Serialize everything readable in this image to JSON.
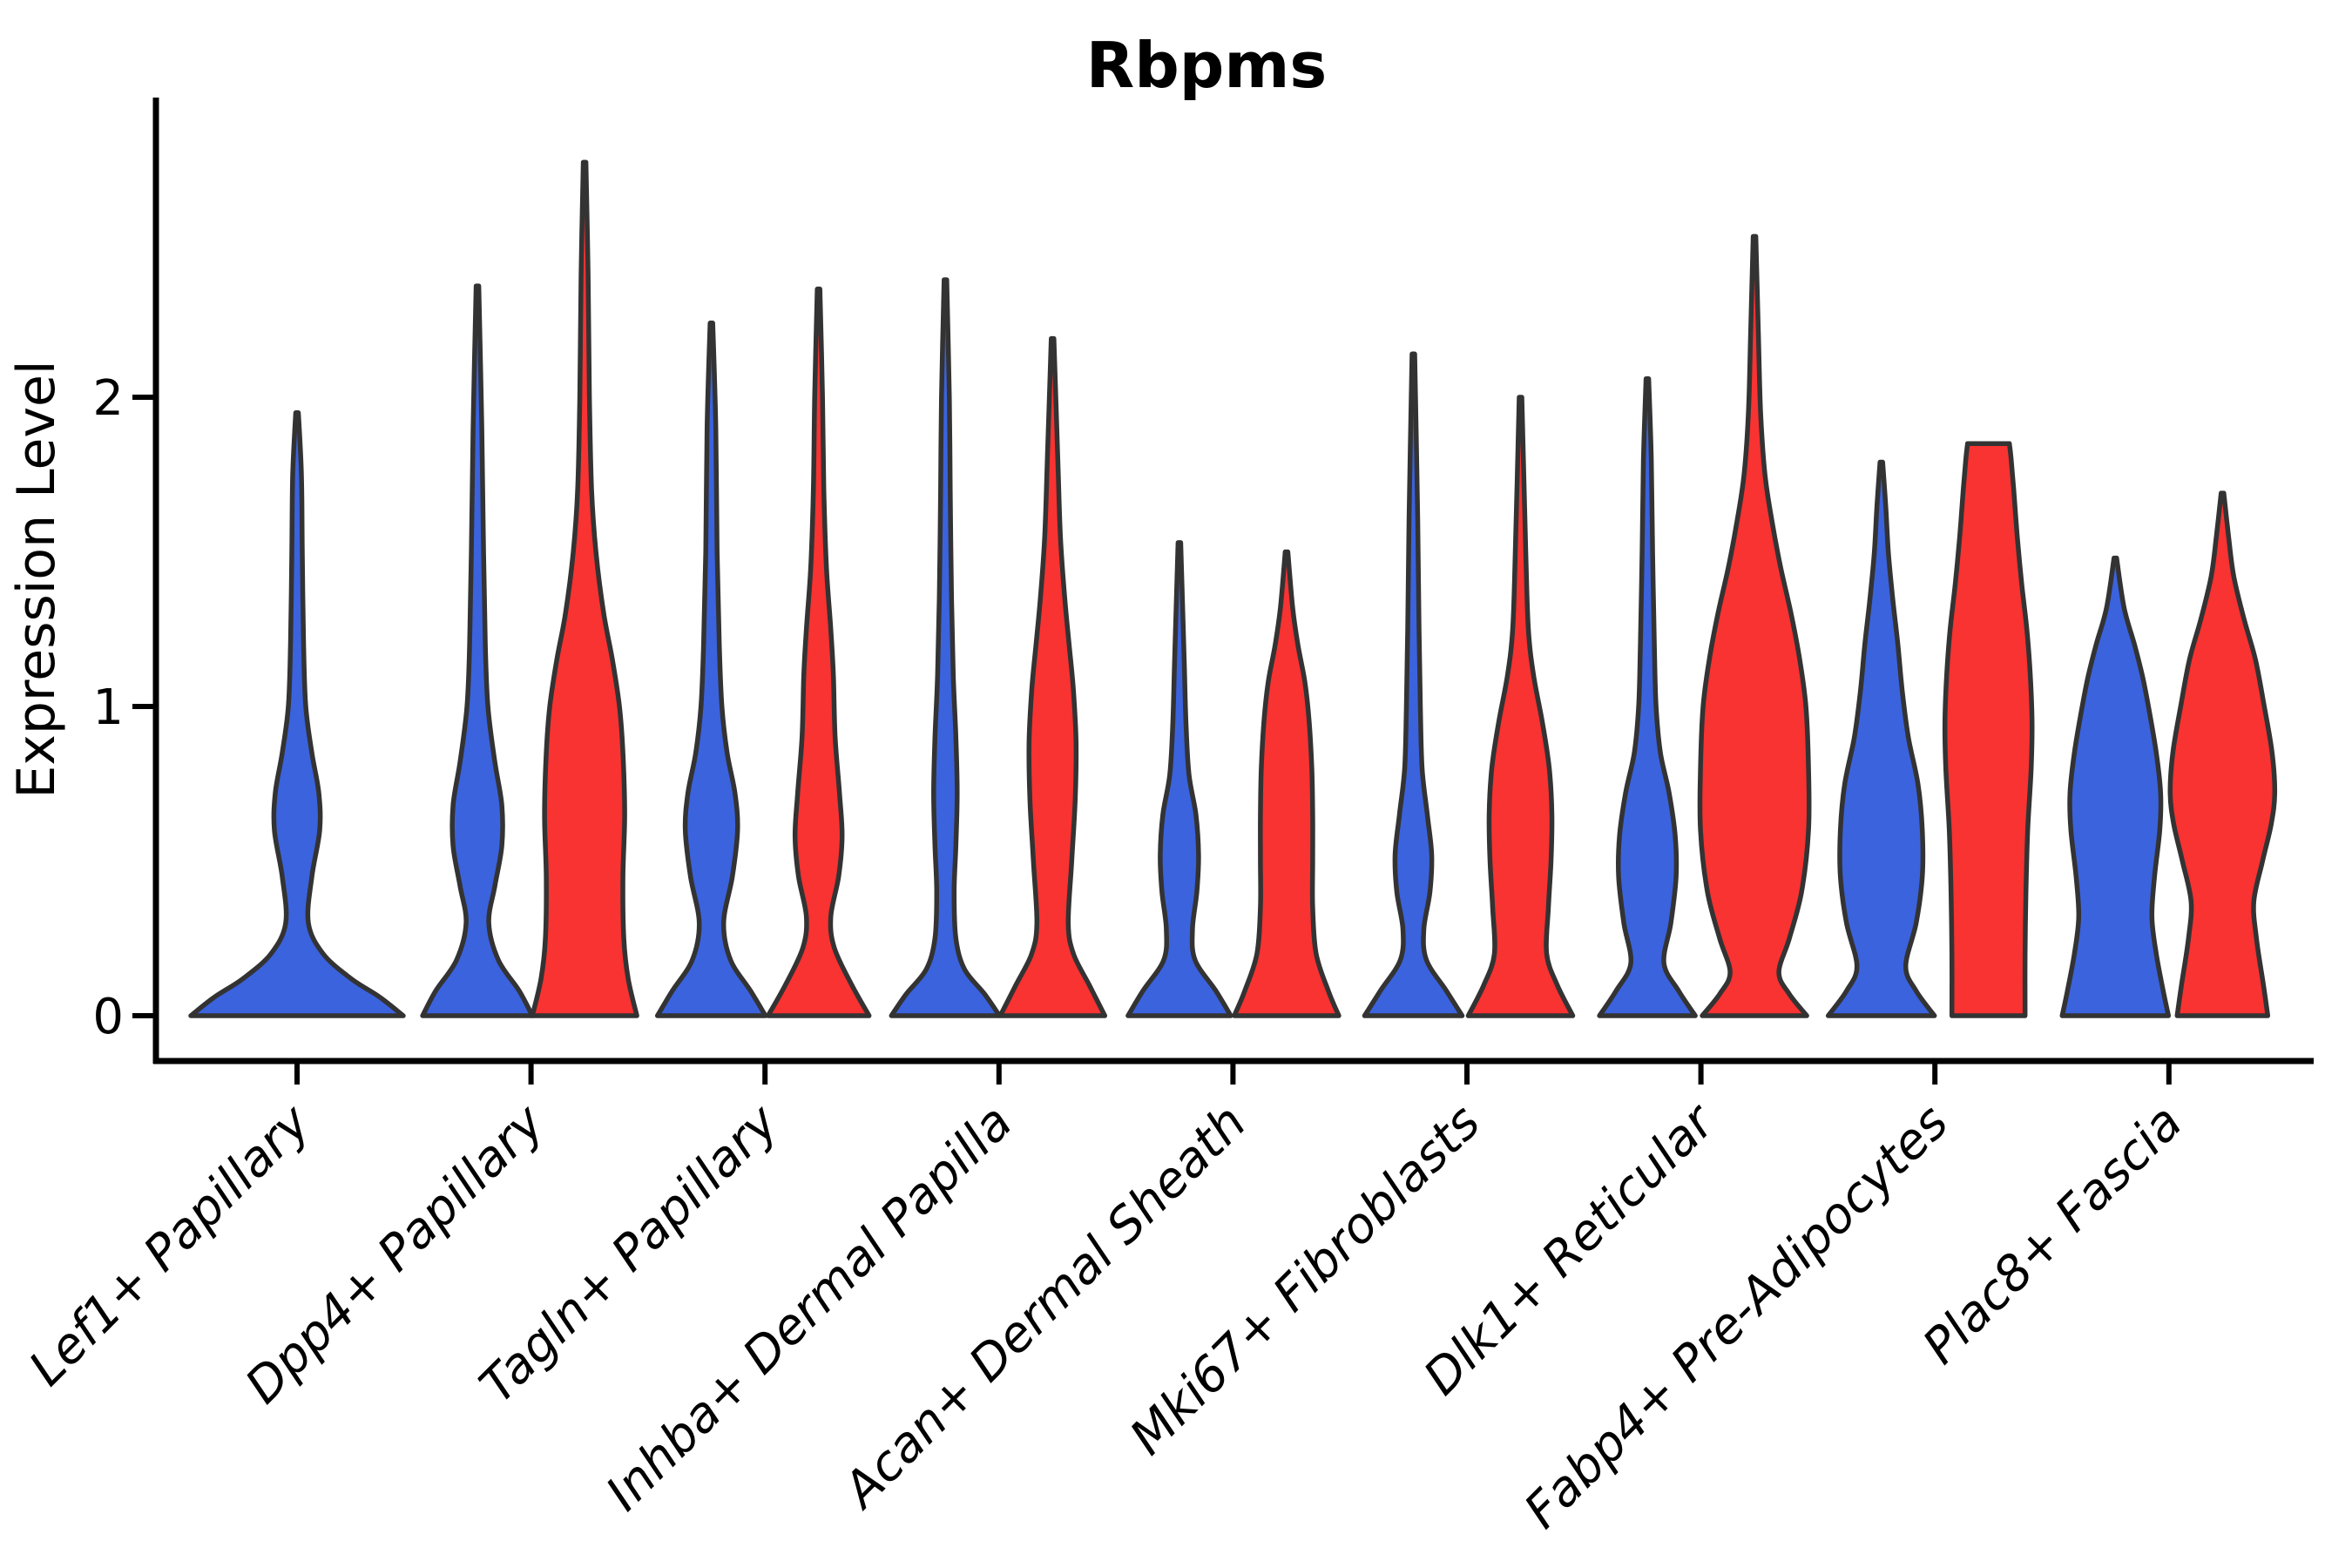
{
  "chart_data": {
    "type": "violin",
    "title": "Rbpms",
    "ylabel": "Expression Level",
    "xlabel": "",
    "y_ticks": [
      0,
      1,
      2
    ],
    "ylim": [
      -0.12,
      2.96
    ],
    "grid": false,
    "legend": "none",
    "colors": {
      "blue": "#3B63DE",
      "red": "#F93232",
      "outline": "#333333",
      "axis": "#000000"
    },
    "categories": [
      "Lef1+ Papillary",
      "Dpp4+ Papillary",
      "Tagln+ Papillary",
      "Inhba+ Dermal Papilla",
      "Acan+ Dermal Sheath",
      "Mki67+ Fibroblasts",
      "Dlk1+ Reticular",
      "Fabp4+ Pre-Adipocytes",
      "Plac8+ Fascia"
    ],
    "violins": [
      {
        "category": 0,
        "group": "blue",
        "side": "center",
        "max": 1.95,
        "flat_top": false,
        "profile": [
          [
            0,
            122
          ],
          [
            0.06,
            95
          ],
          [
            0.12,
            62
          ],
          [
            0.2,
            30
          ],
          [
            0.3,
            13
          ],
          [
            0.45,
            17
          ],
          [
            0.6,
            26
          ],
          [
            0.72,
            25
          ],
          [
            0.85,
            17
          ],
          [
            1.0,
            10
          ],
          [
            1.2,
            7.5
          ],
          [
            1.5,
            6
          ],
          [
            1.75,
            5
          ],
          [
            1.95,
            1.5
          ]
        ]
      },
      {
        "category": 1,
        "group": "blue",
        "side": "left",
        "max": 2.36,
        "flat_top": false,
        "profile": [
          [
            0,
            63
          ],
          [
            0.08,
            48
          ],
          [
            0.18,
            24
          ],
          [
            0.3,
            13
          ],
          [
            0.42,
            20
          ],
          [
            0.55,
            28
          ],
          [
            0.68,
            28
          ],
          [
            0.82,
            20
          ],
          [
            1.0,
            12
          ],
          [
            1.2,
            9
          ],
          [
            1.5,
            7
          ],
          [
            1.9,
            5
          ],
          [
            2.36,
            1.5
          ]
        ]
      },
      {
        "category": 1,
        "group": "red",
        "side": "right",
        "max": 2.76,
        "flat_top": false,
        "profile": [
          [
            0,
            60
          ],
          [
            0.12,
            50
          ],
          [
            0.25,
            45
          ],
          [
            0.45,
            44
          ],
          [
            0.65,
            46
          ],
          [
            0.85,
            44
          ],
          [
            1.0,
            40
          ],
          [
            1.15,
            32
          ],
          [
            1.3,
            22
          ],
          [
            1.5,
            13
          ],
          [
            1.7,
            8
          ],
          [
            2.0,
            5.5
          ],
          [
            2.4,
            4
          ],
          [
            2.76,
            1.5
          ]
        ]
      },
      {
        "category": 2,
        "group": "blue",
        "side": "left",
        "max": 2.24,
        "flat_top": false,
        "profile": [
          [
            0,
            62
          ],
          [
            0.08,
            45
          ],
          [
            0.18,
            22
          ],
          [
            0.3,
            14
          ],
          [
            0.45,
            24
          ],
          [
            0.6,
            30
          ],
          [
            0.72,
            27
          ],
          [
            0.85,
            18
          ],
          [
            1.0,
            12
          ],
          [
            1.2,
            9
          ],
          [
            1.5,
            6.5
          ],
          [
            1.9,
            5
          ],
          [
            2.24,
            1.5
          ]
        ]
      },
      {
        "category": 2,
        "group": "red",
        "side": "right",
        "max": 2.35,
        "flat_top": false,
        "profile": [
          [
            0,
            58
          ],
          [
            0.1,
            38
          ],
          [
            0.22,
            18
          ],
          [
            0.32,
            14
          ],
          [
            0.45,
            23
          ],
          [
            0.58,
            27
          ],
          [
            0.72,
            24
          ],
          [
            0.9,
            19
          ],
          [
            1.1,
            17
          ],
          [
            1.25,
            14
          ],
          [
            1.45,
            9
          ],
          [
            1.7,
            6
          ],
          [
            2.0,
            4.5
          ],
          [
            2.35,
            1.5
          ]
        ]
      },
      {
        "category": 3,
        "group": "blue",
        "side": "left",
        "max": 2.38,
        "flat_top": false,
        "profile": [
          [
            0,
            62
          ],
          [
            0.07,
            45
          ],
          [
            0.15,
            22
          ],
          [
            0.25,
            12
          ],
          [
            0.4,
            10
          ],
          [
            0.55,
            12
          ],
          [
            0.72,
            13.5
          ],
          [
            0.9,
            12
          ],
          [
            1.1,
            9
          ],
          [
            1.35,
            7
          ],
          [
            1.7,
            5.5
          ],
          [
            2.0,
            4.5
          ],
          [
            2.38,
            1.5
          ]
        ]
      },
      {
        "category": 3,
        "group": "red",
        "side": "right",
        "max": 2.19,
        "flat_top": false,
        "profile": [
          [
            0,
            60
          ],
          [
            0.1,
            42
          ],
          [
            0.2,
            24
          ],
          [
            0.3,
            18
          ],
          [
            0.5,
            22
          ],
          [
            0.7,
            26
          ],
          [
            0.88,
            27
          ],
          [
            1.05,
            24
          ],
          [
            1.2,
            19
          ],
          [
            1.35,
            14
          ],
          [
            1.55,
            9
          ],
          [
            1.8,
            6
          ],
          [
            2.19,
            1.5
          ]
        ]
      },
      {
        "category": 4,
        "group": "blue",
        "side": "left",
        "max": 1.53,
        "flat_top": false,
        "profile": [
          [
            0,
            59
          ],
          [
            0.08,
            42
          ],
          [
            0.18,
            18
          ],
          [
            0.28,
            15
          ],
          [
            0.4,
            20
          ],
          [
            0.52,
            22
          ],
          [
            0.65,
            19
          ],
          [
            0.78,
            11
          ],
          [
            0.95,
            7.5
          ],
          [
            1.15,
            5.5
          ],
          [
            1.53,
            1.5
          ]
        ]
      },
      {
        "category": 4,
        "group": "red",
        "side": "right",
        "max": 1.5,
        "flat_top": false,
        "profile": [
          [
            0,
            60
          ],
          [
            0.08,
            48
          ],
          [
            0.2,
            34
          ],
          [
            0.35,
            30
          ],
          [
            0.5,
            30
          ],
          [
            0.65,
            30
          ],
          [
            0.8,
            29
          ],
          [
            0.95,
            26
          ],
          [
            1.08,
            21
          ],
          [
            1.2,
            13
          ],
          [
            1.32,
            7
          ],
          [
            1.5,
            1.5
          ]
        ]
      },
      {
        "category": 5,
        "group": "blue",
        "side": "left",
        "max": 2.14,
        "flat_top": false,
        "profile": [
          [
            0,
            56
          ],
          [
            0.08,
            38
          ],
          [
            0.18,
            15
          ],
          [
            0.28,
            12
          ],
          [
            0.4,
            19
          ],
          [
            0.52,
            21
          ],
          [
            0.65,
            16
          ],
          [
            0.8,
            10
          ],
          [
            1.0,
            8
          ],
          [
            1.25,
            6.5
          ],
          [
            1.6,
            5
          ],
          [
            2.14,
            1.5
          ]
        ]
      },
      {
        "category": 5,
        "group": "red",
        "side": "right",
        "max": 2.0,
        "flat_top": false,
        "profile": [
          [
            0,
            60
          ],
          [
            0.1,
            42
          ],
          [
            0.2,
            30
          ],
          [
            0.35,
            32
          ],
          [
            0.5,
            35
          ],
          [
            0.65,
            36
          ],
          [
            0.8,
            33
          ],
          [
            0.95,
            25
          ],
          [
            1.1,
            15
          ],
          [
            1.25,
            9
          ],
          [
            1.5,
            6
          ],
          [
            2.0,
            1.5
          ]
        ]
      },
      {
        "category": 6,
        "group": "blue",
        "side": "left",
        "max": 2.06,
        "flat_top": false,
        "profile": [
          [
            0,
            55
          ],
          [
            0.08,
            36
          ],
          [
            0.17,
            19
          ],
          [
            0.3,
            27
          ],
          [
            0.45,
            33
          ],
          [
            0.58,
            32
          ],
          [
            0.72,
            25
          ],
          [
            0.85,
            15
          ],
          [
            1.0,
            10
          ],
          [
            1.2,
            8
          ],
          [
            1.5,
            6
          ],
          [
            1.8,
            4.5
          ],
          [
            2.06,
            1.5
          ]
        ]
      },
      {
        "category": 6,
        "group": "red",
        "side": "right",
        "max": 2.52,
        "flat_top": false,
        "profile": [
          [
            0,
            60
          ],
          [
            0.07,
            40
          ],
          [
            0.14,
            28
          ],
          [
            0.25,
            40
          ],
          [
            0.4,
            54
          ],
          [
            0.6,
            62
          ],
          [
            0.8,
            62
          ],
          [
            1.0,
            59
          ],
          [
            1.15,
            52
          ],
          [
            1.3,
            42
          ],
          [
            1.45,
            30
          ],
          [
            1.6,
            20
          ],
          [
            1.75,
            12
          ],
          [
            1.95,
            7
          ],
          [
            2.2,
            4.5
          ],
          [
            2.52,
            1.5
          ]
        ]
      },
      {
        "category": 7,
        "group": "blue",
        "side": "left",
        "max": 1.79,
        "flat_top": false,
        "profile": [
          [
            0,
            61
          ],
          [
            0.08,
            40
          ],
          [
            0.16,
            28
          ],
          [
            0.3,
            40
          ],
          [
            0.45,
            47
          ],
          [
            0.6,
            47
          ],
          [
            0.75,
            42
          ],
          [
            0.9,
            31
          ],
          [
            1.05,
            24
          ],
          [
            1.2,
            19
          ],
          [
            1.35,
            13
          ],
          [
            1.5,
            8
          ],
          [
            1.65,
            5
          ],
          [
            1.79,
            1.5
          ]
        ]
      },
      {
        "category": 7,
        "group": "red",
        "side": "right",
        "max": 1.85,
        "flat_top": true,
        "profile": [
          [
            0,
            42
          ],
          [
            0.2,
            42
          ],
          [
            0.4,
            43
          ],
          [
            0.6,
            45
          ],
          [
            0.8,
            49
          ],
          [
            0.95,
            50
          ],
          [
            1.1,
            48
          ],
          [
            1.25,
            44
          ],
          [
            1.4,
            38
          ],
          [
            1.55,
            33
          ],
          [
            1.7,
            29
          ],
          [
            1.8,
            26
          ],
          [
            1.85,
            24
          ]
        ]
      },
      {
        "category": 8,
        "group": "blue",
        "side": "left",
        "max": 1.48,
        "flat_top": false,
        "profile": [
          [
            0,
            61
          ],
          [
            0.08,
            55
          ],
          [
            0.2,
            47
          ],
          [
            0.32,
            42
          ],
          [
            0.45,
            45
          ],
          [
            0.6,
            51
          ],
          [
            0.72,
            52
          ],
          [
            0.85,
            47
          ],
          [
            1.0,
            38
          ],
          [
            1.1,
            31
          ],
          [
            1.2,
            22
          ],
          [
            1.32,
            10
          ],
          [
            1.48,
            1.5
          ]
        ]
      },
      {
        "category": 8,
        "group": "red",
        "side": "right",
        "max": 1.69,
        "flat_top": false,
        "profile": [
          [
            0,
            52
          ],
          [
            0.1,
            47
          ],
          [
            0.25,
            39
          ],
          [
            0.37,
            36
          ],
          [
            0.5,
            46
          ],
          [
            0.62,
            56
          ],
          [
            0.72,
            60
          ],
          [
            0.85,
            57
          ],
          [
            1.0,
            48
          ],
          [
            1.15,
            38
          ],
          [
            1.28,
            25
          ],
          [
            1.42,
            13
          ],
          [
            1.55,
            7
          ],
          [
            1.69,
            1.5
          ]
        ]
      }
    ]
  }
}
